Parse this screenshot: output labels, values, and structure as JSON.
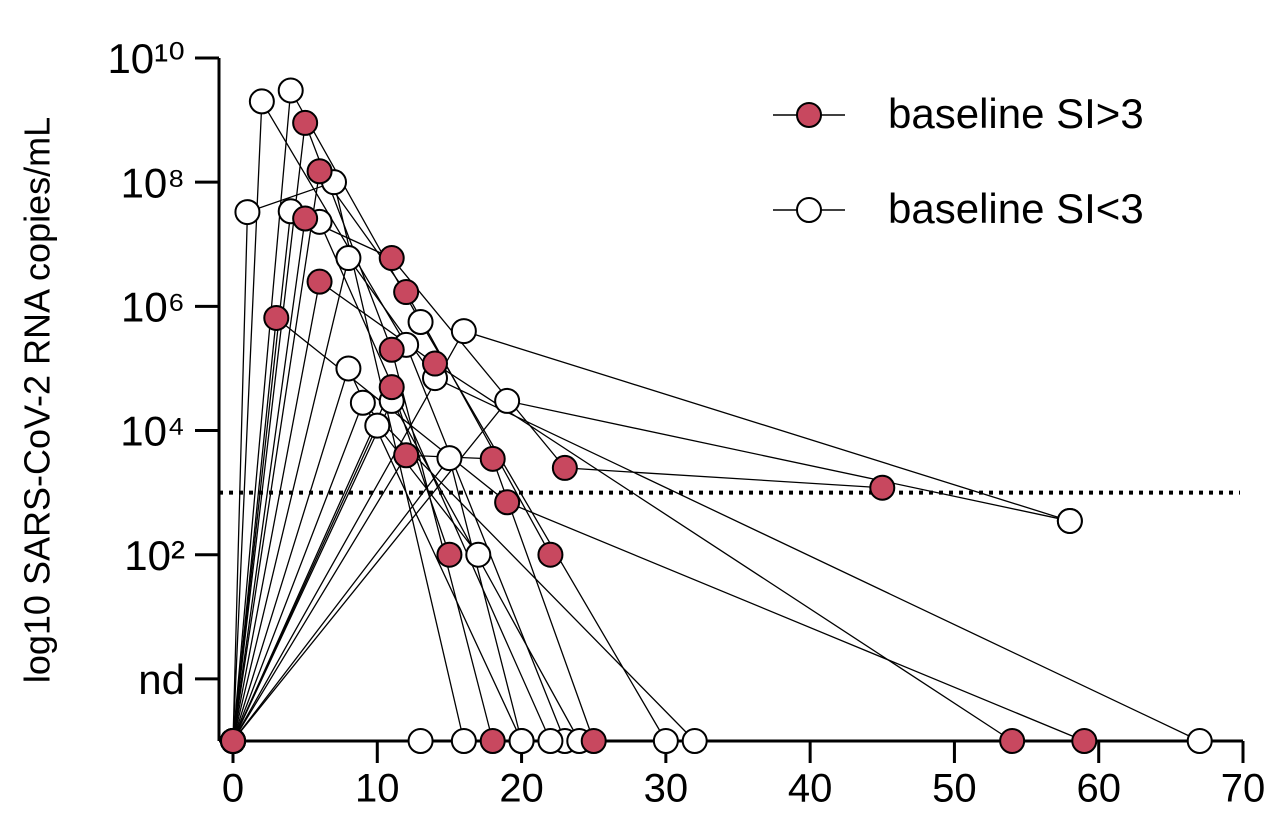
{
  "chart_data": {
    "type": "line",
    "ylabel": "log10 SARS-CoV-2 RNA copies/mL",
    "log_y": true,
    "xlim": [
      0,
      70
    ],
    "xticks": [
      0,
      10,
      20,
      30,
      40,
      50,
      60,
      70
    ],
    "ylim": [
      0.1,
      10000000000
    ],
    "yticks": [
      {
        "value": 1,
        "label": "nd"
      },
      {
        "value": 100,
        "label": "10²"
      },
      {
        "value": 10000,
        "label": "10⁴"
      },
      {
        "value": 1000000,
        "label": "10⁶"
      },
      {
        "value": 100000000,
        "label": "10⁸"
      },
      {
        "value": 10000000000,
        "label": "10¹⁰"
      }
    ],
    "threshold": 1000,
    "series": [
      {
        "name": "baseline SI>3",
        "color": "#c8485f",
        "filled": true,
        "patients": [
          {
            "x": [
              0,
              5,
              11,
              18
            ],
            "values": [
              0.1,
              900000000,
              200000,
              0.1
            ]
          },
          {
            "x": [
              0,
              6,
              12,
              22
            ],
            "values": [
              0.1,
              150000000,
              1700000,
              100
            ]
          },
          {
            "x": [
              0,
              5,
              11,
              23,
              45
            ],
            "values": [
              0.1,
              26000000,
              6000000,
              2500,
              1200
            ]
          },
          {
            "x": [
              0,
              6,
              14,
              54
            ],
            "values": [
              0.1,
              2500000,
              120000,
              0.1
            ]
          },
          {
            "x": [
              0,
              3,
              19,
              59
            ],
            "values": [
              0.1,
              650000,
              700,
              0.1
            ]
          },
          {
            "x": [
              0,
              11,
              15
            ],
            "values": [
              0.1,
              50000,
              100
            ]
          },
          {
            "x": [
              0,
              12,
              18,
              25
            ],
            "values": [
              0.1,
              4000,
              3500,
              0.1
            ]
          }
        ]
      },
      {
        "name": "baseline SI<3",
        "color": "#ffffff",
        "filled": false,
        "patients": [
          {
            "x": [
              0,
              2,
              12,
              23
            ],
            "values": [
              0.1,
              2000000000,
              240000,
              0.1
            ]
          },
          {
            "x": [
              0,
              4,
              13,
              30
            ],
            "values": [
              0.1,
              3000000000,
              560000,
              0.1
            ]
          },
          {
            "x": [
              0,
              1,
              7,
              16
            ],
            "values": [
              0.1,
              33000000,
              100000000,
              0.1
            ]
          },
          {
            "x": [
              0,
              4,
              6,
              22
            ],
            "values": [
              0.1,
              34000000,
              23000000,
              0.1
            ]
          },
          {
            "x": [
              0,
              8,
              14,
              67
            ],
            "values": [
              0.1,
              6000000,
              70000,
              0.1
            ]
          },
          {
            "x": [
              0,
              16,
              58
            ],
            "values": [
              0.1,
              400000,
              350
            ]
          },
          {
            "x": [
              0,
              8,
              20
            ],
            "values": [
              0.1,
              100000,
              0.1
            ]
          },
          {
            "x": [
              0,
              9,
              32
            ],
            "values": [
              0.1,
              28000,
              0.1
            ]
          },
          {
            "x": [
              0,
              11,
              24
            ],
            "values": [
              0.1,
              30000,
              0.1
            ]
          },
          {
            "x": [
              0,
              10,
              17
            ],
            "values": [
              0.1,
              12000,
              100
            ]
          },
          {
            "x": [
              0,
              19,
              58
            ],
            "values": [
              0.1,
              30000,
              350
            ]
          },
          {
            "x": [
              0,
              15,
              20
            ],
            "values": [
              0.1,
              3600,
              0.1
            ]
          },
          {
            "x": [
              0,
              13
            ],
            "values": [
              0.1,
              0.1
            ]
          }
        ]
      }
    ]
  }
}
